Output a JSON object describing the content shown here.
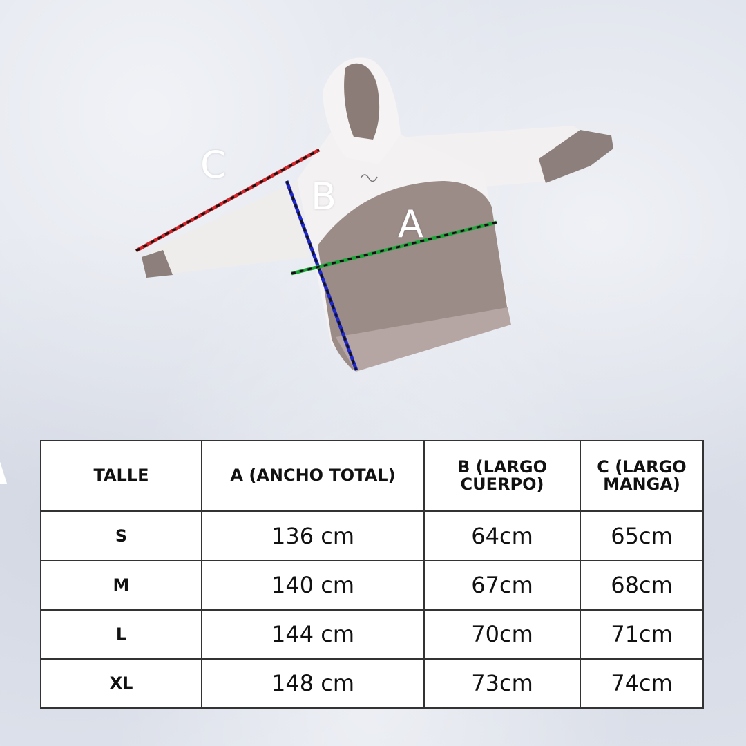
{
  "labels": {
    "a": "A",
    "b": "B",
    "c": "C"
  },
  "colors": {
    "line_a": "#1ea53a",
    "line_b": "#1f27c8",
    "line_c": "#d2262a",
    "dash": "#111111",
    "hoodie_white": "#f1efef",
    "hoodie_taupe": "#9a8a86",
    "cuff_taupe": "#8d7f7b"
  },
  "table": {
    "headers": [
      "TALLE",
      "A (ANCHO TOTAL)",
      "B (LARGO CUERPO)",
      "C (LARGO MANGA)"
    ],
    "rows": [
      {
        "size": "S",
        "a": "136 cm",
        "b": "64cm",
        "c": "65cm"
      },
      {
        "size": "M",
        "a": "140 cm",
        "b": "67cm",
        "c": "68cm"
      },
      {
        "size": "L",
        "a": "144 cm",
        "b": "70cm",
        "c": "71cm"
      },
      {
        "size": "XL",
        "a": "148 cm",
        "b": "73cm",
        "c": "74cm"
      }
    ]
  }
}
